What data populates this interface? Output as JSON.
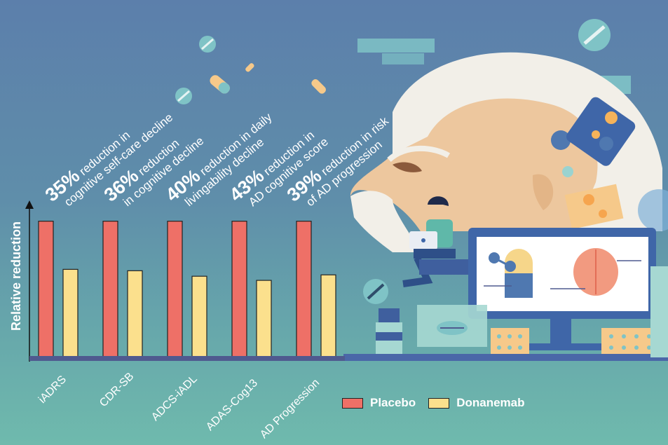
{
  "chart_data": {
    "type": "bar",
    "categories": [
      "iADRS",
      "CDR-SB",
      "ADCS-iADL",
      "ADAS-Cog13",
      "AD Progression"
    ],
    "series": [
      {
        "name": "Placebo",
        "values": [
          1.0,
          1.0,
          1.0,
          1.0,
          1.0
        ]
      },
      {
        "name": "Donanemab",
        "values": [
          0.65,
          0.64,
          0.6,
          0.57,
          0.61
        ]
      }
    ],
    "ylabel": "Relative reduction",
    "ylim": [
      0,
      1.1
    ],
    "grid": false,
    "legend_position": "bottom-right",
    "colors": {
      "Placebo": "#ee7067",
      "Donanemab": "#fbe08d"
    }
  },
  "annotations": [
    {
      "percent": "35%",
      "line1": " reduction in",
      "line2": "cognitive self-care decline"
    },
    {
      "percent": "36%",
      "line1": " reduction",
      "line2": "in cognitive decline"
    },
    {
      "percent": "40%",
      "line1": " reduction in daily",
      "line2": "livingability decline"
    },
    {
      "percent": "43%",
      "line1": " reduction in",
      "line2": "AD cognitive score"
    },
    {
      "percent": "39%",
      "line1": " reduction in risk",
      "line2": "of AD progression"
    }
  ],
  "legend": {
    "placebo": "Placebo",
    "donanemab": "Donanemab"
  },
  "colors": {
    "background_top": "#5c7fab",
    "background_bottom": "#6fbaad",
    "axis": "#4f5a8f"
  }
}
